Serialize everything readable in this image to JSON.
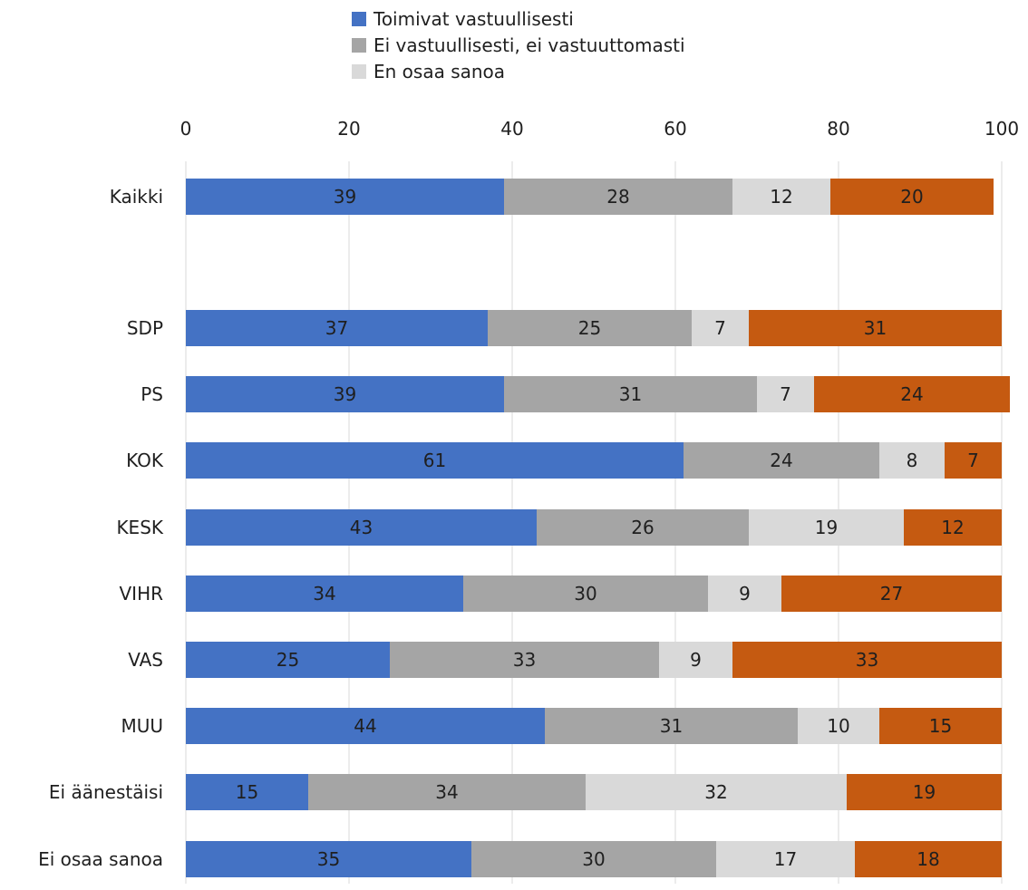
{
  "chart_data": {
    "type": "bar",
    "orientation": "horizontal",
    "stacked": true,
    "xlim": [
      0,
      100
    ],
    "x_ticks": [
      "0",
      "20",
      "40",
      "60",
      "80",
      "100"
    ],
    "categories": [
      "Kaikki",
      "",
      "SDP",
      "PS",
      "KOK",
      "KESK",
      "VIHR",
      "VAS",
      "MUU",
      "Ei äänestäisi",
      "Ei osaa sanoa"
    ],
    "series": [
      {
        "name": "Toimivat vastuullisesti",
        "color": "#4472c4",
        "label_color": "#1f1f1f",
        "values": [
          39,
          null,
          37,
          39,
          61,
          43,
          34,
          25,
          44,
          15,
          35
        ]
      },
      {
        "name": "Ei vastuullisesti, ei vastuuttomasti",
        "color": "#a5a5a5",
        "label_color": "#1f1f1f",
        "values": [
          28,
          null,
          25,
          31,
          24,
          26,
          30,
          33,
          31,
          34,
          30
        ]
      },
      {
        "name": "En osaa sanoa",
        "color": "#d9d9d9",
        "label_color": "#1f1f1f",
        "values": [
          12,
          null,
          7,
          7,
          8,
          19,
          9,
          9,
          10,
          32,
          17
        ]
      },
      {
        "name": "",
        "color": "#c55a11",
        "label_color": "#1f1f1f",
        "values": [
          20,
          null,
          31,
          24,
          7,
          12,
          27,
          33,
          15,
          19,
          18
        ]
      }
    ],
    "legend_position": "top",
    "grid": true
  }
}
